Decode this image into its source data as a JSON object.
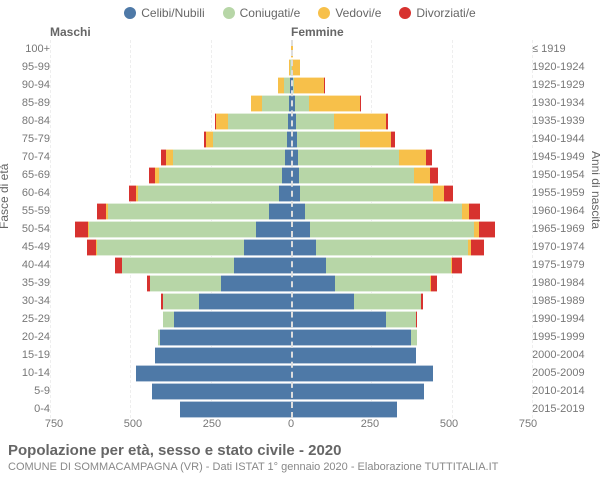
{
  "type": "population-pyramid",
  "legend": [
    {
      "label": "Celibi/Nubili",
      "color": "#4e79a7"
    },
    {
      "label": "Coniugati/e",
      "color": "#b7d6a7"
    },
    {
      "label": "Vedovi/e",
      "color": "#f7c04a"
    },
    {
      "label": "Divorziati/e",
      "color": "#d7322f"
    }
  ],
  "headers": {
    "left": "Maschi",
    "right": "Femmine"
  },
  "axis_titles": {
    "left": "Fasce di età",
    "right": "Anni di nascita"
  },
  "xlim": 750,
  "xticks": [
    750,
    500,
    250,
    0,
    250,
    500,
    750
  ],
  "title": "Popolazione per età, sesso e stato civile - 2020",
  "subtitle": "COMUNE DI SOMMACAMPAGNA (VR) - Dati ISTAT 1° gennaio 2020 - Elaborazione TUTTITALIA.IT",
  "colors": {
    "celibi": "#4e79a7",
    "coniugati": "#b7d6a7",
    "vedovi": "#f7c04a",
    "divorziati": "#d7322f",
    "grid": "#eeeeee",
    "text": "#666666"
  },
  "rows": [
    {
      "age": "100+",
      "birth": "≤ 1919",
      "m": {
        "c": 0,
        "m": 0,
        "w": 0,
        "d": 0
      },
      "f": {
        "c": 0,
        "m": 0,
        "w": 5,
        "d": 0
      }
    },
    {
      "age": "95-99",
      "birth": "1920-1924",
      "m": {
        "c": 1,
        "m": 2,
        "w": 3,
        "d": 0
      },
      "f": {
        "c": 1,
        "m": 1,
        "w": 28,
        "d": 0
      }
    },
    {
      "age": "90-94",
      "birth": "1925-1929",
      "m": {
        "c": 3,
        "m": 20,
        "w": 18,
        "d": 0
      },
      "f": {
        "c": 5,
        "m": 6,
        "w": 95,
        "d": 1
      }
    },
    {
      "age": "85-89",
      "birth": "1930-1934",
      "m": {
        "c": 6,
        "m": 85,
        "w": 35,
        "d": 2
      },
      "f": {
        "c": 12,
        "m": 45,
        "w": 160,
        "d": 3
      }
    },
    {
      "age": "80-84",
      "birth": "1935-1939",
      "m": {
        "c": 10,
        "m": 190,
        "w": 38,
        "d": 4
      },
      "f": {
        "c": 15,
        "m": 120,
        "w": 165,
        "d": 6
      }
    },
    {
      "age": "75-79",
      "birth": "1940-1944",
      "m": {
        "c": 12,
        "m": 235,
        "w": 22,
        "d": 8
      },
      "f": {
        "c": 18,
        "m": 200,
        "w": 100,
        "d": 10
      }
    },
    {
      "age": "70-74",
      "birth": "1945-1949",
      "m": {
        "c": 20,
        "m": 355,
        "w": 20,
        "d": 15
      },
      "f": {
        "c": 22,
        "m": 320,
        "w": 85,
        "d": 18
      }
    },
    {
      "age": "65-69",
      "birth": "1950-1954",
      "m": {
        "c": 28,
        "m": 390,
        "w": 12,
        "d": 20
      },
      "f": {
        "c": 25,
        "m": 365,
        "w": 50,
        "d": 25
      }
    },
    {
      "age": "60-64",
      "birth": "1955-1959",
      "m": {
        "c": 38,
        "m": 445,
        "w": 8,
        "d": 22
      },
      "f": {
        "c": 30,
        "m": 420,
        "w": 35,
        "d": 28
      }
    },
    {
      "age": "55-59",
      "birth": "1960-1964",
      "m": {
        "c": 70,
        "m": 510,
        "w": 5,
        "d": 30
      },
      "f": {
        "c": 45,
        "m": 495,
        "w": 22,
        "d": 35
      }
    },
    {
      "age": "50-54",
      "birth": "1965-1969",
      "m": {
        "c": 110,
        "m": 530,
        "w": 4,
        "d": 40
      },
      "f": {
        "c": 60,
        "m": 520,
        "w": 15,
        "d": 50
      }
    },
    {
      "age": "45-49",
      "birth": "1970-1974",
      "m": {
        "c": 150,
        "m": 465,
        "w": 2,
        "d": 30
      },
      "f": {
        "c": 80,
        "m": 480,
        "w": 10,
        "d": 40
      }
    },
    {
      "age": "40-44",
      "birth": "1975-1979",
      "m": {
        "c": 180,
        "m": 355,
        "w": 1,
        "d": 20
      },
      "f": {
        "c": 110,
        "m": 395,
        "w": 6,
        "d": 30
      }
    },
    {
      "age": "35-39",
      "birth": "1980-1984",
      "m": {
        "c": 220,
        "m": 225,
        "w": 0,
        "d": 12
      },
      "f": {
        "c": 140,
        "m": 300,
        "w": 3,
        "d": 18
      }
    },
    {
      "age": "30-34",
      "birth": "1985-1989",
      "m": {
        "c": 290,
        "m": 115,
        "w": 0,
        "d": 5
      },
      "f": {
        "c": 200,
        "m": 210,
        "w": 1,
        "d": 8
      }
    },
    {
      "age": "25-29",
      "birth": "1990-1994",
      "m": {
        "c": 370,
        "m": 35,
        "w": 0,
        "d": 1
      },
      "f": {
        "c": 300,
        "m": 95,
        "w": 0,
        "d": 2
      }
    },
    {
      "age": "20-24",
      "birth": "1995-1999",
      "m": {
        "c": 415,
        "m": 5,
        "w": 0,
        "d": 0
      },
      "f": {
        "c": 380,
        "m": 20,
        "w": 0,
        "d": 0
      }
    },
    {
      "age": "15-19",
      "birth": "2000-2004",
      "m": {
        "c": 430,
        "m": 0,
        "w": 0,
        "d": 0
      },
      "f": {
        "c": 395,
        "m": 0,
        "w": 0,
        "d": 0
      }
    },
    {
      "age": "10-14",
      "birth": "2005-2009",
      "m": {
        "c": 490,
        "m": 0,
        "w": 0,
        "d": 0
      },
      "f": {
        "c": 450,
        "m": 0,
        "w": 0,
        "d": 0
      }
    },
    {
      "age": "5-9",
      "birth": "2010-2014",
      "m": {
        "c": 440,
        "m": 0,
        "w": 0,
        "d": 0
      },
      "f": {
        "c": 420,
        "m": 0,
        "w": 0,
        "d": 0
      }
    },
    {
      "age": "0-4",
      "birth": "2015-2019",
      "m": {
        "c": 350,
        "m": 0,
        "w": 0,
        "d": 0
      },
      "f": {
        "c": 335,
        "m": 0,
        "w": 0,
        "d": 0
      }
    }
  ]
}
